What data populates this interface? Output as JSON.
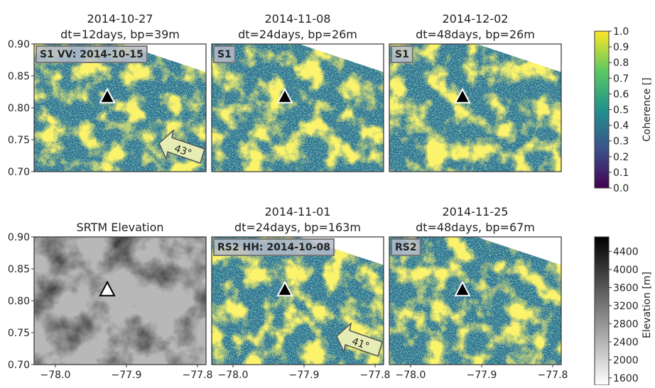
{
  "chart_data": [
    {
      "type": "coherence",
      "title": "2014-10-27",
      "subtitle": "dt=12days, bp=39m",
      "badge": "S1 VV: 2014-10-15",
      "heading_label": "43°",
      "xlim": [
        -78.03,
        -77.788
      ],
      "ylim": [
        0.7,
        0.9
      ],
      "yticks": [
        {
          "value": 0.9,
          "label": "0.90"
        },
        {
          "value": 0.85,
          "label": "0.85"
        },
        {
          "value": 0.8,
          "label": "0.80"
        },
        {
          "value": 0.75,
          "label": "0.75"
        },
        {
          "value": 0.7,
          "label": "0.70"
        }
      ],
      "marker": {
        "x": -77.927,
        "y": 0.817
      }
    },
    {
      "type": "coherence",
      "title": "2014-11-08",
      "subtitle": "dt=24days, bp=26m",
      "badge": "S1",
      "xlim": [
        -78.03,
        -77.788
      ],
      "ylim": [
        0.7,
        0.9
      ],
      "marker": {
        "x": -77.927,
        "y": 0.817
      }
    },
    {
      "type": "coherence",
      "title": "2014-12-02",
      "subtitle": "dt=48days, bp=26m",
      "badge": "S1",
      "xlim": [
        -78.03,
        -77.788
      ],
      "ylim": [
        0.7,
        0.9
      ],
      "marker": {
        "x": -77.927,
        "y": 0.817
      }
    },
    {
      "type": "elevation",
      "title": "SRTM Elevation",
      "xlim": [
        -78.03,
        -77.788
      ],
      "ylim": [
        0.7,
        0.9
      ],
      "yticks": [
        {
          "value": 0.9,
          "label": "0.90"
        },
        {
          "value": 0.85,
          "label": "0.85"
        },
        {
          "value": 0.8,
          "label": "0.80"
        },
        {
          "value": 0.75,
          "label": "0.75"
        },
        {
          "value": 0.7,
          "label": "0.70"
        }
      ],
      "xticks": [
        {
          "value": -78.0,
          "label": "−78.0"
        },
        {
          "value": -77.9,
          "label": "−77.9"
        },
        {
          "value": -77.8,
          "label": "−77.8"
        }
      ],
      "marker": {
        "x": -77.927,
        "y": 0.817
      }
    },
    {
      "type": "coherence",
      "title": "2014-11-01",
      "subtitle": "dt=24days, bp=163m",
      "badge": "RS2 HH: 2014-10-08",
      "heading_label": "41°",
      "xlim": [
        -78.03,
        -77.788
      ],
      "ylim": [
        0.7,
        0.9
      ],
      "xticks": [
        {
          "value": -78.0,
          "label": "−78.0"
        },
        {
          "value": -77.9,
          "label": "−77.9"
        },
        {
          "value": -77.8,
          "label": "−77.8"
        }
      ],
      "marker": {
        "x": -77.927,
        "y": 0.817
      }
    },
    {
      "type": "coherence",
      "title": "2014-11-25",
      "subtitle": "dt=48days, bp=67m",
      "badge": "RS2",
      "xlim": [
        -78.03,
        -77.788
      ],
      "ylim": [
        0.7,
        0.9
      ],
      "xticks": [
        {
          "value": -78.0,
          "label": "−78.0"
        },
        {
          "value": -77.9,
          "label": "−77.9"
        },
        {
          "value": -77.8,
          "label": "−77.8"
        }
      ],
      "marker": {
        "x": -77.927,
        "y": 0.817
      }
    },
    {
      "type": "colorbar",
      "label": "Coherence []",
      "ylim": [
        0,
        1
      ],
      "yticks": [
        {
          "value": 1,
          "label": "1.0"
        },
        0.9,
        0.8,
        0.7,
        0.6,
        0.5,
        0.4,
        0.3,
        0.2,
        0.1,
        {
          "value": 0,
          "label": "0.0"
        }
      ],
      "colors": [
        "#440154",
        "#3b528b",
        "#21918c",
        "#5ec962",
        "#fde725"
      ]
    },
    {
      "type": "colorbar",
      "label": "Elevation [m]",
      "ylim": [
        1440,
        4720
      ],
      "yticks": [
        4400,
        4000,
        3600,
        3200,
        2800,
        2400,
        2000,
        1600
      ],
      "colors": [
        "#ffffff",
        "#000000"
      ]
    }
  ]
}
